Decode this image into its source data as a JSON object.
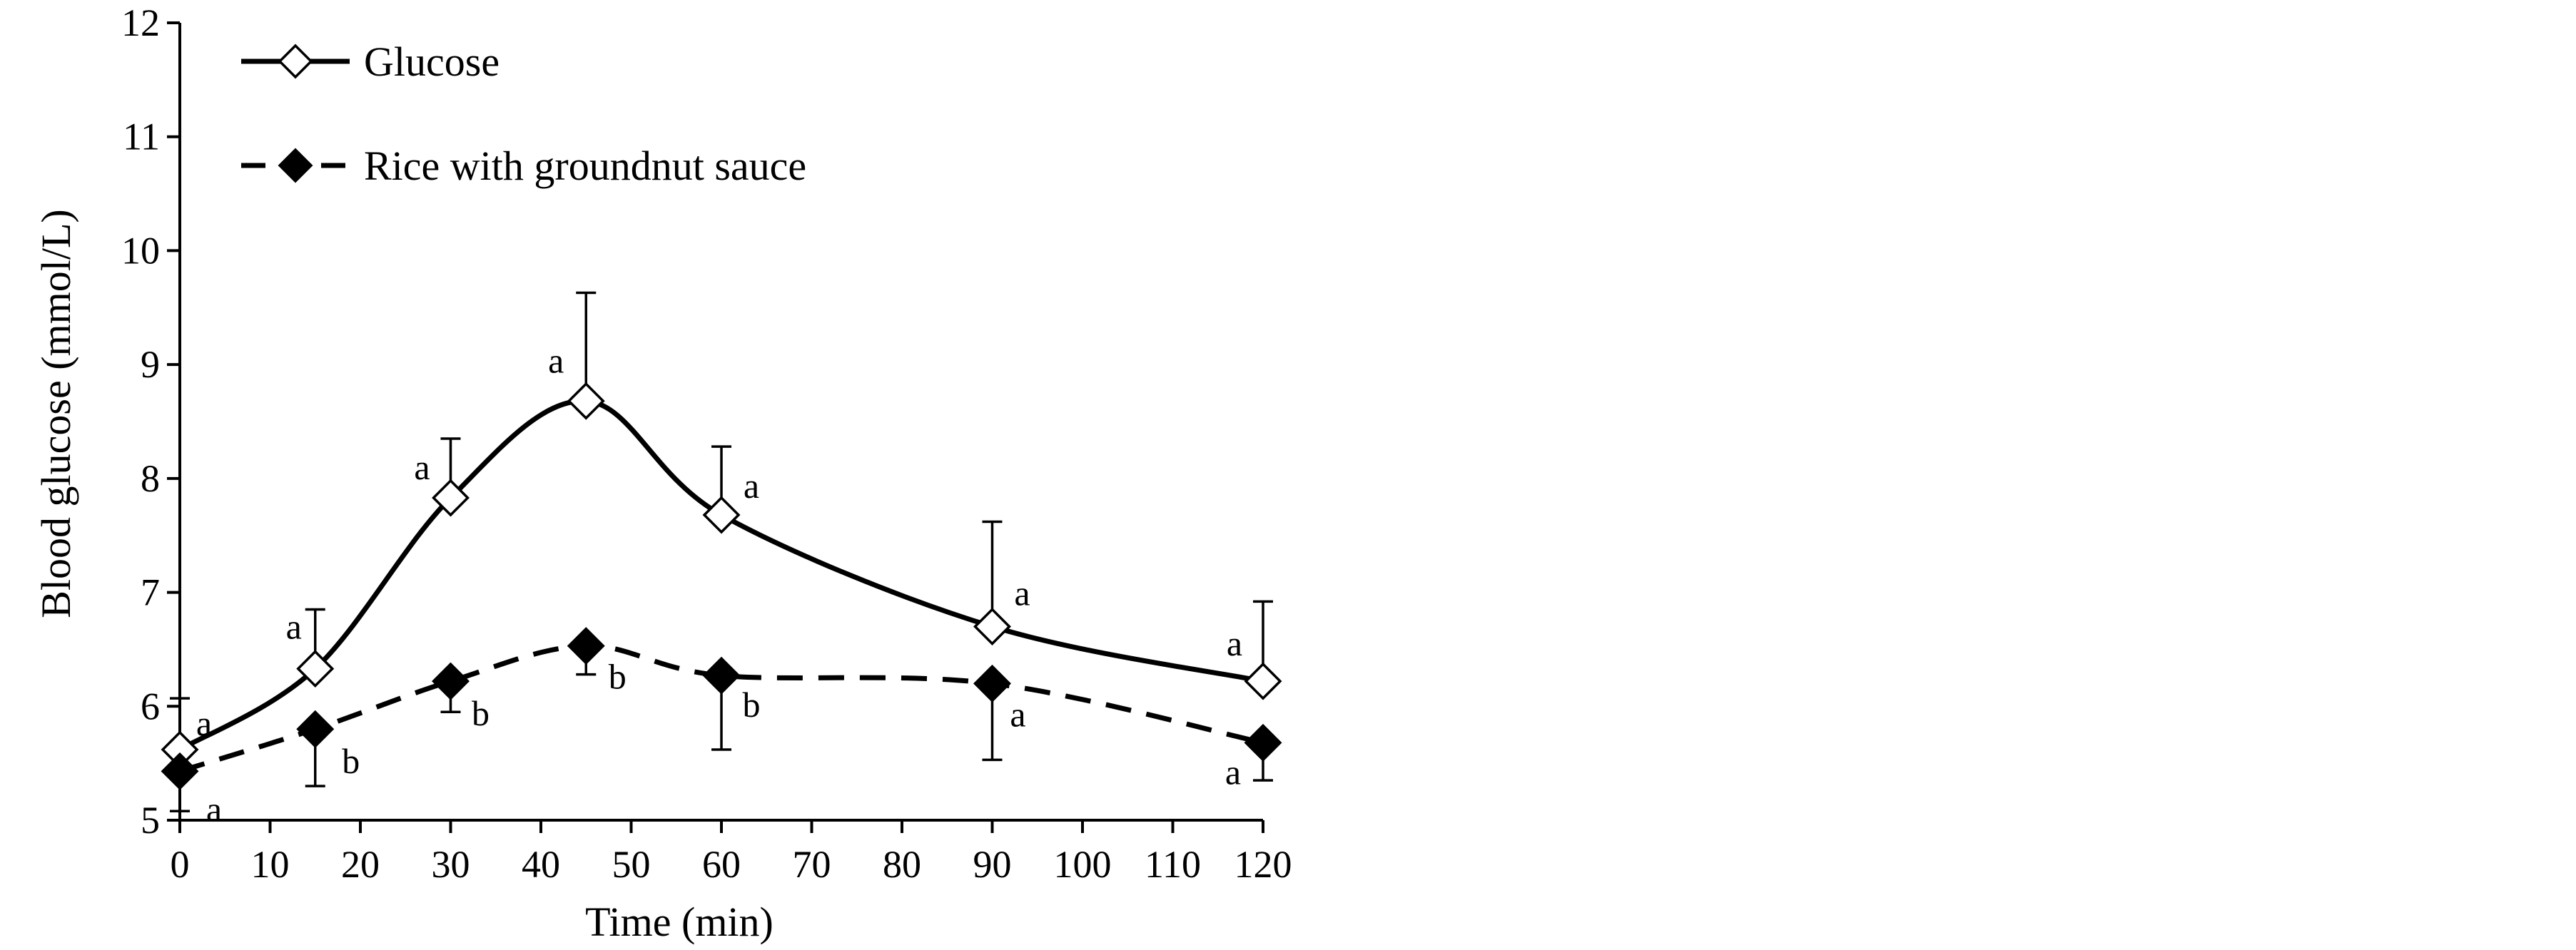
{
  "chart_data": {
    "type": "line",
    "title": "",
    "xlabel": "Time (min)",
    "ylabel": "Blood glucose (mmol/L)",
    "xlim": [
      0,
      120
    ],
    "ylim": [
      5,
      12
    ],
    "xticks": [
      "0",
      "10",
      "20",
      "30",
      "40",
      "50",
      "60",
      "70",
      "80",
      "90",
      "100",
      "110",
      "120"
    ],
    "yticks": [
      "5",
      "6",
      "7",
      "8",
      "9",
      "10",
      "11",
      "12"
    ],
    "grid": false,
    "legend_position": "top-left",
    "x": [
      0,
      15,
      30,
      45,
      60,
      90,
      120
    ],
    "series": [
      {
        "name": "Glucose",
        "style": "solid",
        "marker": "open-diamond",
        "color": "#000000",
        "values": [
          5.62,
          6.33,
          7.83,
          8.68,
          7.68,
          6.7,
          6.22
        ],
        "error_upper": [
          0.45,
          0.52,
          0.52,
          0.95,
          0.6,
          0.92,
          0.7
        ],
        "significance": [
          "a",
          "a",
          "a",
          "a",
          "a",
          "a",
          "a"
        ]
      },
      {
        "name": "Rice with groundnut sauce",
        "style": "dashed",
        "marker": "filled-diamond",
        "color": "#000000",
        "values": [
          5.43,
          5.8,
          6.22,
          6.53,
          6.27,
          6.2,
          5.68
        ],
        "error_lower": [
          0.35,
          0.5,
          0.27,
          0.25,
          0.65,
          0.67,
          0.33
        ],
        "significance": [
          "a",
          "b",
          "b",
          "b",
          "b",
          "a",
          "a"
        ]
      }
    ]
  }
}
